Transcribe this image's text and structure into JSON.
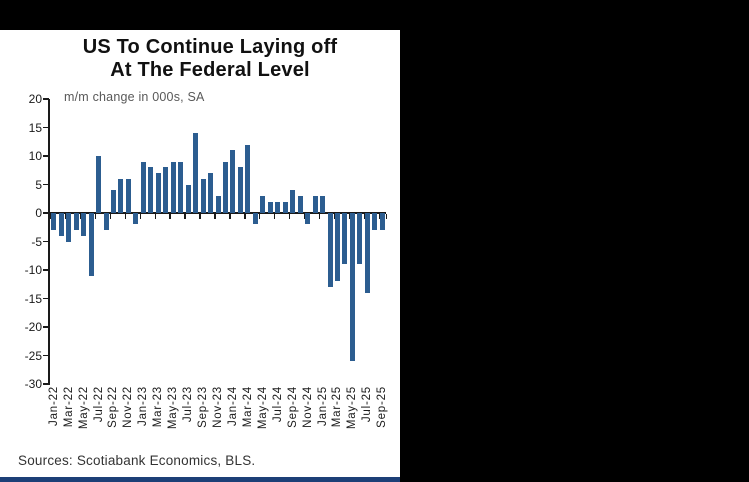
{
  "chart": {
    "title_line1": "US To Continue Laying off",
    "title_line2": "At The Federal Level",
    "subtitle": "m/m change in 000s, SA",
    "source": "Sources: Scotiabank Economics, BLS."
  },
  "colors": {
    "bar_blue": "#2c5d90",
    "footer_navy": "#1c3f77",
    "background_black": "#000000",
    "panel_white": "#ffffff"
  },
  "chart_data": {
    "type": "bar",
    "title": "US To Continue Laying off At The Federal Level",
    "subtitle": "m/m change in 000s, SA",
    "source": "Sources: Scotiabank Economics, BLS.",
    "categories": [
      "Jan-22",
      "Feb-22",
      "Mar-22",
      "Apr-22",
      "May-22",
      "Jun-22",
      "Jul-22",
      "Aug-22",
      "Sep-22",
      "Oct-22",
      "Nov-22",
      "Dec-22",
      "Jan-23",
      "Feb-23",
      "Mar-23",
      "Apr-23",
      "May-23",
      "Jun-23",
      "Jul-23",
      "Aug-23",
      "Sep-23",
      "Oct-23",
      "Nov-23",
      "Dec-23",
      "Jan-24",
      "Feb-24",
      "Mar-24",
      "Apr-24",
      "May-24",
      "Jun-24",
      "Jul-24",
      "Aug-24",
      "Sep-24",
      "Oct-24",
      "Nov-24",
      "Dec-24",
      "Jan-25",
      "Feb-25",
      "Mar-25",
      "Apr-25",
      "May-25",
      "Jun-25",
      "Jul-25",
      "Aug-25",
      "Sep-25"
    ],
    "values": [
      -3,
      -4,
      -5,
      -3,
      -4,
      -11,
      10,
      -3,
      4,
      6,
      6,
      -2,
      9,
      8,
      7,
      8,
      9,
      9,
      5,
      14,
      6,
      7,
      3,
      9,
      11,
      8,
      12,
      -2,
      3,
      2,
      2,
      2,
      4,
      3,
      -2,
      3,
      3,
      -13,
      -12,
      -9,
      -26,
      -9,
      -14,
      -3,
      -3
    ],
    "x_tick_labels": [
      "Jan-22",
      "Mar-22",
      "May-22",
      "Jul-22",
      "Sep-22",
      "Nov-22",
      "Jan-23",
      "Mar-23",
      "May-23",
      "Jul-23",
      "Sep-23",
      "Nov-23",
      "Jan-24",
      "Mar-24",
      "May-24",
      "Jul-24",
      "Sep-24",
      "Nov-24",
      "Jan-25",
      "Mar-25",
      "May-25",
      "Jul-25",
      "Sep-25"
    ],
    "y_ticks": [
      20,
      15,
      10,
      5,
      0,
      -5,
      -10,
      -15,
      -20,
      -25,
      -30
    ],
    "ylim": [
      -30,
      20
    ],
    "grid": "zero-line-only",
    "legend": "none",
    "bar_color": "#2c5d90"
  }
}
